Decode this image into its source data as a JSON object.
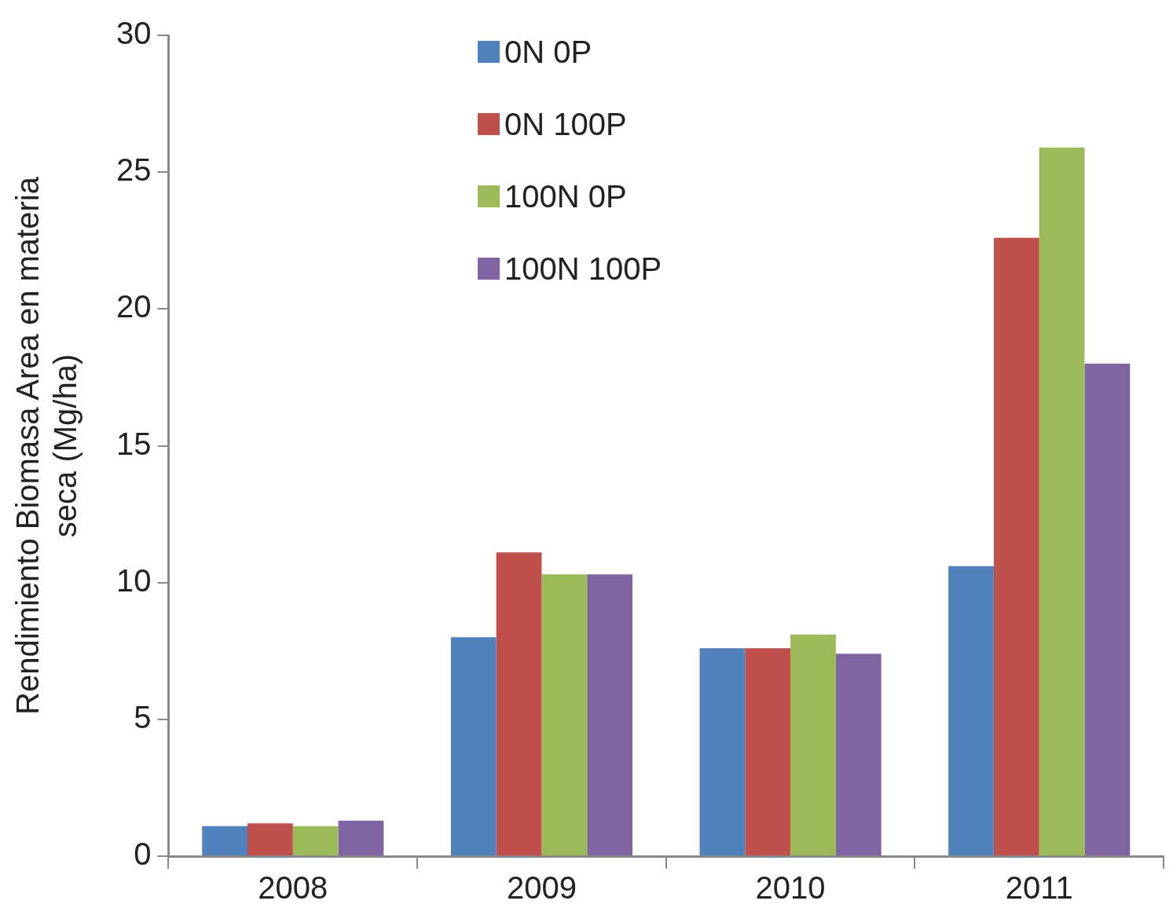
{
  "chart_data": {
    "type": "bar",
    "ylabel": "Rendimiento Biomasa Area en materia\nseca (Mg/ha)",
    "categories": [
      "2008",
      "2009",
      "2010",
      "2011"
    ],
    "series": [
      {
        "name": "0N 0P",
        "color": "#4f81bd",
        "values": [
          1.1,
          8.0,
          7.6,
          10.6
        ]
      },
      {
        "name": "0N 100P",
        "color": "#c0504d",
        "values": [
          1.2,
          11.1,
          7.6,
          22.6
        ]
      },
      {
        "name": "100N 0P",
        "color": "#9bbb59",
        "values": [
          1.1,
          10.3,
          8.1,
          25.9
        ]
      },
      {
        "name": "100N 100P",
        "color": "#8064a2",
        "values": [
          1.3,
          10.3,
          7.4,
          18.0
        ]
      }
    ],
    "ylim": [
      0,
      30
    ],
    "yticks": [
      0,
      5,
      10,
      15,
      20,
      25,
      30
    ],
    "grid": false,
    "legend": "top"
  }
}
